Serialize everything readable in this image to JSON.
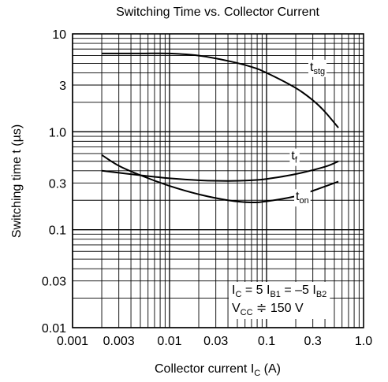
{
  "chart_data": {
    "type": "line",
    "title": "Switching Time vs. Collector Current",
    "xlabel": {
      "main": "Collector current  I",
      "sub": "C",
      "unit": "  (A)"
    },
    "ylabel": "Switching time  t  (µs)",
    "x_scale": "log",
    "y_scale": "log",
    "xlim": [
      0.001,
      1.0
    ],
    "ylim": [
      0.01,
      10
    ],
    "grid": true,
    "x_ticks": [
      {
        "value": 0.001,
        "label": "0.001"
      },
      {
        "value": 0.003,
        "label": "0.003"
      },
      {
        "value": 0.01,
        "label": "0.01"
      },
      {
        "value": 0.03,
        "label": "0.03"
      },
      {
        "value": 0.1,
        "label": "0.1"
      },
      {
        "value": 0.3,
        "label": "0.3"
      },
      {
        "value": 1.0,
        "label": "1.0"
      }
    ],
    "y_ticks": [
      {
        "value": 10,
        "label": "10"
      },
      {
        "value": 3,
        "label": "3"
      },
      {
        "value": 1.0,
        "label": "1.0"
      },
      {
        "value": 0.3,
        "label": "0.3"
      },
      {
        "value": 0.1,
        "label": "0.1"
      },
      {
        "value": 0.03,
        "label": "0.03"
      },
      {
        "value": 0.01,
        "label": "0.01"
      }
    ],
    "series": [
      {
        "name": "t_stg",
        "label_main": "t",
        "label_sub": "stg",
        "label_at": {
          "x": 0.28,
          "y": 4.2
        },
        "points": [
          {
            "x": 0.002,
            "y": 6.3
          },
          {
            "x": 0.005,
            "y": 6.3
          },
          {
            "x": 0.01,
            "y": 6.3
          },
          {
            "x": 0.02,
            "y": 6.0
          },
          {
            "x": 0.04,
            "y": 5.3
          },
          {
            "x": 0.07,
            "y": 4.6
          },
          {
            "x": 0.1,
            "y": 4.0
          },
          {
            "x": 0.2,
            "y": 2.8
          },
          {
            "x": 0.3,
            "y": 2.1
          },
          {
            "x": 0.4,
            "y": 1.6
          },
          {
            "x": 0.55,
            "y": 1.1
          }
        ]
      },
      {
        "name": "t_f",
        "label_main": "t",
        "label_sub": "f",
        "label_at": {
          "x": 0.18,
          "y": 0.52
        },
        "points": [
          {
            "x": 0.002,
            "y": 0.4
          },
          {
            "x": 0.005,
            "y": 0.36
          },
          {
            "x": 0.01,
            "y": 0.335
          },
          {
            "x": 0.02,
            "y": 0.32
          },
          {
            "x": 0.04,
            "y": 0.315
          },
          {
            "x": 0.07,
            "y": 0.32
          },
          {
            "x": 0.1,
            "y": 0.33
          },
          {
            "x": 0.2,
            "y": 0.37
          },
          {
            "x": 0.4,
            "y": 0.44
          },
          {
            "x": 0.55,
            "y": 0.5
          }
        ]
      },
      {
        "name": "t_on",
        "label_main": "t",
        "label_sub": "on",
        "label_at": {
          "x": 0.2,
          "y": 0.2
        },
        "points": [
          {
            "x": 0.002,
            "y": 0.58
          },
          {
            "x": 0.003,
            "y": 0.45
          },
          {
            "x": 0.005,
            "y": 0.36
          },
          {
            "x": 0.01,
            "y": 0.28
          },
          {
            "x": 0.02,
            "y": 0.23
          },
          {
            "x": 0.04,
            "y": 0.2
          },
          {
            "x": 0.07,
            "y": 0.19
          },
          {
            "x": 0.1,
            "y": 0.195
          },
          {
            "x": 0.2,
            "y": 0.22
          },
          {
            "x": 0.3,
            "y": 0.25
          },
          {
            "x": 0.55,
            "y": 0.31
          }
        ]
      }
    ],
    "annotation": {
      "line1": [
        {
          "t": "I",
          "sub": false
        },
        {
          "t": "C",
          "sub": true
        },
        {
          "t": " = 5 I",
          "sub": false
        },
        {
          "t": "B1",
          "sub": true
        },
        {
          "t": " = –5 I",
          "sub": false
        },
        {
          "t": "B2",
          "sub": true
        }
      ],
      "line2": [
        {
          "t": "V",
          "sub": false
        },
        {
          "t": "CC",
          "sub": true
        },
        {
          "t": " ≑ 150 V",
          "sub": false
        }
      ]
    }
  }
}
